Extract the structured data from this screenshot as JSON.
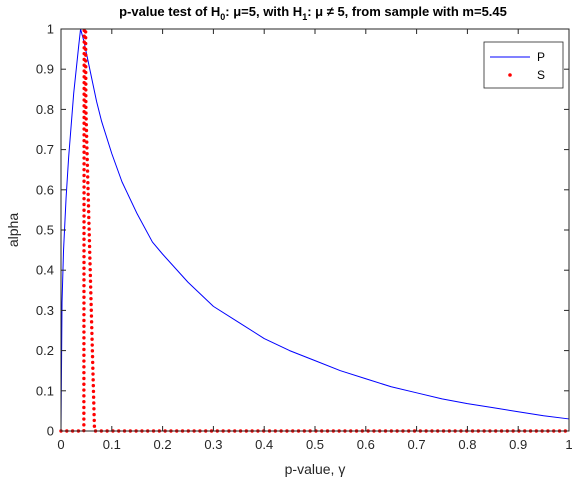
{
  "chart_data": {
    "type": "line",
    "title": {
      "t1": "p-value test of  H",
      "s1": "0",
      "t2": ": μ=5, with H",
      "s2": "1",
      "t3": ": μ ≠ 5, from sample with m=5.45"
    },
    "xlabel": "p-value, γ",
    "ylabel": "alpha",
    "xlim": [
      0,
      1
    ],
    "ylim": [
      0,
      1
    ],
    "xticks": [
      "0",
      "0.1",
      "0.2",
      "0.3",
      "0.4",
      "0.5",
      "0.6",
      "0.7",
      "0.8",
      "0.9",
      "1"
    ],
    "yticks": [
      "0",
      "0.1",
      "0.2",
      "0.3",
      "0.4",
      "0.5",
      "0.6",
      "0.7",
      "0.8",
      "0.9",
      "1"
    ],
    "legend_position": "top-right",
    "series": [
      {
        "name": "P",
        "style": "solid",
        "color": "#0000ff",
        "x": [
          0,
          0.002,
          0.005,
          0.01,
          0.015,
          0.02,
          0.025,
          0.03,
          0.035,
          0.0385,
          0.045,
          0.05,
          0.06,
          0.07,
          0.08,
          0.1,
          0.12,
          0.15,
          0.18,
          0.2,
          0.25,
          0.3,
          0.35,
          0.4,
          0.45,
          0.5,
          0.55,
          0.6,
          0.65,
          0.7,
          0.75,
          0.8,
          0.85,
          0.9,
          0.95,
          1
        ],
        "y": [
          0,
          0.32,
          0.45,
          0.58,
          0.68,
          0.76,
          0.84,
          0.9,
          0.96,
          1.0,
          0.97,
          0.94,
          0.88,
          0.82,
          0.77,
          0.69,
          0.62,
          0.54,
          0.47,
          0.44,
          0.37,
          0.31,
          0.27,
          0.23,
          0.2,
          0.175,
          0.15,
          0.13,
          0.11,
          0.095,
          0.08,
          0.068,
          0.058,
          0.048,
          0.038,
          0.03
        ]
      },
      {
        "name": "S",
        "style": "dotted",
        "color": "#ff0000",
        "x": [
          0,
          0.033,
          0.045,
          0.0455,
          0.0457,
          0.0485,
          0.049,
          0.066,
          0.07,
          0.1,
          0.2,
          0.3,
          0.4,
          0.5,
          0.6,
          0.7,
          0.8,
          0.9,
          1
        ],
        "y": [
          0,
          0,
          0,
          0.8,
          1.0,
          1.0,
          0.8,
          0,
          0,
          0,
          0,
          0,
          0,
          0,
          0,
          0,
          0,
          0,
          0
        ]
      }
    ]
  }
}
